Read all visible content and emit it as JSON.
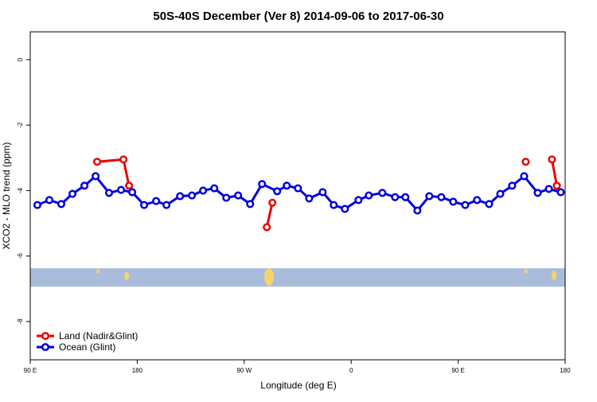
{
  "chart_data": {
    "type": "line",
    "title": "50S-40S December (Ver 8)   2014-09-06 to 2017-06-30",
    "xlabel": "Longitude (deg E)",
    "ylabel": "XCO2 - MLO trend (ppm)",
    "xlim": [
      90,
      540
    ],
    "xticks": [
      {
        "value": 90,
        "label": "90 E"
      },
      180,
      {
        "value": 270,
        "label": "90 W"
      },
      {
        "value": 360,
        "label": "0"
      },
      {
        "value": 450,
        "label": "90 E"
      },
      {
        "value": 540,
        "label": "180"
      }
    ],
    "ylim": [
      -9.17,
      0.85
    ],
    "yticks": [
      0,
      -2,
      -4,
      -6,
      -8
    ],
    "legend": "bottom-left",
    "series": [
      {
        "name": "Land (Nadir&Glint)",
        "color": "#ee0000",
        "x": [
          146.3,
          168.4,
          173.1,
          null,
          289.0,
          293.7,
          null,
          506.8,
          null,
          528.9,
          533.0
        ],
        "values": [
          -3.12,
          -3.05,
          -3.85,
          null,
          -5.12,
          -4.37,
          null,
          -3.12,
          null,
          -3.05,
          -3.85
        ]
      },
      {
        "name": "Ocean (Glint)",
        "color": "#0000dd",
        "x": [
          96.0,
          106.1,
          116.1,
          125.5,
          135.6,
          145.0,
          156.3,
          166.4,
          175.8,
          185.8,
          195.9,
          204.6,
          216.0,
          226.0,
          235.4,
          244.8,
          254.9,
          264.9,
          275.0,
          285.0,
          297.7,
          305.8,
          315.2,
          324.6,
          336.0,
          345.3,
          354.7,
          366.1,
          374.8,
          386.2,
          396.9,
          405.6,
          415.7,
          425.7,
          435.8,
          445.8,
          455.9,
          465.9,
          476.0,
          485.4,
          495.4,
          505.5,
          516.9,
          526.3,
          536.3
        ],
        "values": [
          -4.44,
          -4.29,
          -4.41,
          -4.1,
          -3.85,
          -3.56,
          -4.07,
          -3.98,
          -4.05,
          -4.44,
          -4.32,
          -4.44,
          -4.17,
          -4.15,
          -4.0,
          -3.93,
          -4.22,
          -4.15,
          -4.41,
          -3.8,
          -4.02,
          -3.85,
          -3.93,
          -4.24,
          -4.05,
          -4.44,
          -4.56,
          -4.29,
          -4.15,
          -4.07,
          -4.2,
          -4.2,
          -4.61,
          -4.17,
          -4.2,
          -4.34,
          -4.44,
          -4.29,
          -4.41,
          -4.1,
          -3.85,
          -3.56,
          -4.07,
          -3.95,
          -4.05
        ]
      }
    ]
  }
}
